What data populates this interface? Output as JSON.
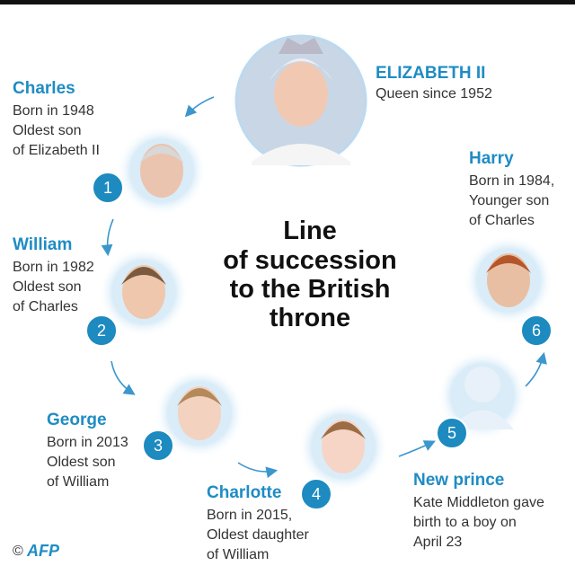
{
  "title": [
    "Line",
    "of succession",
    "to the British",
    "throne"
  ],
  "queen": {
    "name": "ELIZABETH II",
    "description": [
      "Queen since 1952"
    ]
  },
  "members": [
    {
      "rank": "1",
      "name": "Charles",
      "description": [
        "Born in 1948",
        "Oldest son",
        "of Elizabeth II"
      ]
    },
    {
      "rank": "2",
      "name": "William",
      "description": [
        "Born in 1982",
        "Oldest son",
        "of Charles"
      ]
    },
    {
      "rank": "3",
      "name": "George",
      "description": [
        "Born in 2013",
        "Oldest son",
        "of William"
      ]
    },
    {
      "rank": "4",
      "name": "Charlotte",
      "description": [
        "Born in 2015,",
        "Oldest daughter",
        "of William"
      ]
    },
    {
      "rank": "5",
      "name": "New prince",
      "description": [
        "Kate Middleton gave",
        "birth to a boy on",
        "April 23"
      ]
    },
    {
      "rank": "6",
      "name": "Harry",
      "description": [
        "Born in 1984,",
        "Younger son",
        "of Charles"
      ]
    }
  ],
  "credit": {
    "symbol": "©",
    "logo": "AFP"
  }
}
